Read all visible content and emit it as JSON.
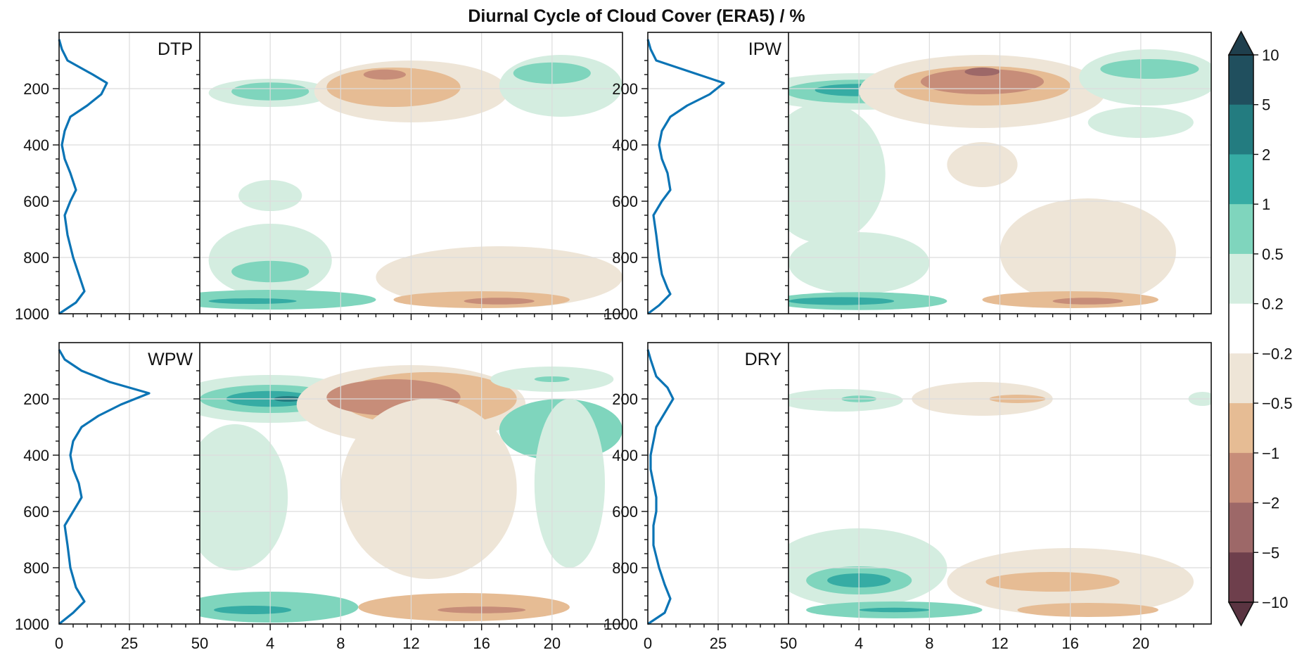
{
  "title": "Diurnal Cycle of Cloud Cover (ERA5) / %",
  "chart_data": {
    "type": "heatmap",
    "title": "Diurnal Cycle of Cloud Cover (ERA5) / %",
    "y_axis": {
      "ticks": [
        200,
        400,
        600,
        800,
        1000
      ],
      "range": [
        0,
        1000
      ],
      "inverted": true
    },
    "profile_x_axis": {
      "ticks": [
        0,
        25,
        50
      ],
      "range": [
        0,
        50
      ]
    },
    "hour_x_axis": {
      "ticks": [
        4,
        8,
        12,
        16,
        20
      ],
      "range": [
        0,
        24
      ]
    },
    "grid": true,
    "colorbar": {
      "placement": "right",
      "labels": [
        "10",
        "5",
        "2",
        "1",
        "0.5",
        "0.2",
        "−0.2",
        "−0.5",
        "−1",
        "−2",
        "−5",
        "−10"
      ],
      "colors": [
        "#204f5e",
        "#237c80",
        "#36aca4",
        "#7fd5bd",
        "#d4ede0",
        "#ffffff",
        "#eee5d7",
        "#e6bc94",
        "#c78d79",
        "#9d6868",
        "#6e3f4c"
      ],
      "extend_top_color": "#1f3f4d",
      "extend_bottom_color": "#5a3441"
    },
    "panels": [
      {
        "label": "DTP",
        "profile": [
          [
            0,
            25
          ],
          [
            1,
            60
          ],
          [
            3,
            100
          ],
          [
            12,
            150
          ],
          [
            17,
            180
          ],
          [
            15,
            220
          ],
          [
            10,
            260
          ],
          [
            4,
            300
          ],
          [
            2,
            350
          ],
          [
            1,
            400
          ],
          [
            2,
            450
          ],
          [
            4,
            500
          ],
          [
            6,
            560
          ],
          [
            4,
            600
          ],
          [
            2,
            650
          ],
          [
            3,
            720
          ],
          [
            5,
            800
          ],
          [
            7,
            860
          ],
          [
            9,
            920
          ],
          [
            6,
            960
          ],
          [
            0,
            1000
          ]
        ],
        "blobs": [
          {
            "h": 4,
            "p": 215,
            "rx": 3.5,
            "ry": 50,
            "c": 1
          },
          {
            "h": 4,
            "p": 210,
            "rx": 2.2,
            "ry": 32,
            "c": 2
          },
          {
            "h": 12,
            "p": 210,
            "rx": 5.5,
            "ry": 110,
            "c": -1
          },
          {
            "h": 11,
            "p": 195,
            "rx": 3.8,
            "ry": 70,
            "c": -2
          },
          {
            "h": 10.5,
            "p": 150,
            "rx": 1.2,
            "ry": 18,
            "c": -3
          },
          {
            "h": 20.5,
            "p": 190,
            "rx": 3.5,
            "ry": 110,
            "c": 1
          },
          {
            "h": 20,
            "p": 145,
            "rx": 2.2,
            "ry": 38,
            "c": 2
          },
          {
            "h": 4,
            "p": 580,
            "rx": 1.8,
            "ry": 55,
            "c": 1
          },
          {
            "h": 4,
            "p": 810,
            "rx": 3.5,
            "ry": 130,
            "c": 1
          },
          {
            "h": 4,
            "p": 850,
            "rx": 2.2,
            "ry": 38,
            "c": 2
          },
          {
            "h": 4,
            "p": 950,
            "rx": 6,
            "ry": 35,
            "c": 2
          },
          {
            "h": 3,
            "p": 955,
            "rx": 2.5,
            "ry": 10,
            "c": 3
          },
          {
            "h": 17,
            "p": 870,
            "rx": 7,
            "ry": 110,
            "c": -1
          },
          {
            "h": 16,
            "p": 950,
            "rx": 5,
            "ry": 30,
            "c": -2
          },
          {
            "h": 17,
            "p": 955,
            "rx": 2,
            "ry": 12,
            "c": -3
          }
        ]
      },
      {
        "label": "IPW",
        "profile": [
          [
            0,
            25
          ],
          [
            1,
            60
          ],
          [
            3,
            100
          ],
          [
            18,
            150
          ],
          [
            27,
            180
          ],
          [
            22,
            220
          ],
          [
            14,
            260
          ],
          [
            8,
            300
          ],
          [
            5,
            350
          ],
          [
            4,
            400
          ],
          [
            5,
            450
          ],
          [
            7,
            500
          ],
          [
            8,
            560
          ],
          [
            5,
            600
          ],
          [
            2,
            650
          ],
          [
            3,
            720
          ],
          [
            4,
            800
          ],
          [
            5,
            860
          ],
          [
            7,
            910
          ],
          [
            8,
            930
          ],
          [
            4,
            970
          ],
          [
            0,
            1000
          ]
        ],
        "blobs": [
          {
            "h": 4,
            "p": 210,
            "rx": 6,
            "ry": 65,
            "c": 1
          },
          {
            "h": 4,
            "p": 210,
            "rx": 4.2,
            "ry": 42,
            "c": 2
          },
          {
            "h": 4,
            "p": 205,
            "rx": 2.5,
            "ry": 22,
            "c": 3
          },
          {
            "h": 11,
            "p": 210,
            "rx": 7,
            "ry": 130,
            "c": -1
          },
          {
            "h": 11,
            "p": 190,
            "rx": 5,
            "ry": 70,
            "c": -2
          },
          {
            "h": 11,
            "p": 175,
            "rx": 3.5,
            "ry": 45,
            "c": -3
          },
          {
            "h": 11,
            "p": 140,
            "rx": 1,
            "ry": 15,
            "c": -4
          },
          {
            "h": 20.5,
            "p": 160,
            "rx": 4,
            "ry": 100,
            "c": 1
          },
          {
            "h": 20.5,
            "p": 130,
            "rx": 2.8,
            "ry": 35,
            "c": 2
          },
          {
            "h": 20,
            "p": 320,
            "rx": 3,
            "ry": 55,
            "c": 1
          },
          {
            "h": 2,
            "p": 500,
            "rx": 3.5,
            "ry": 250,
            "c": 1
          },
          {
            "h": 11,
            "p": 470,
            "rx": 2,
            "ry": 80,
            "c": -1
          },
          {
            "h": 17,
            "p": 780,
            "rx": 5,
            "ry": 190,
            "c": -1
          },
          {
            "h": 4,
            "p": 820,
            "rx": 4,
            "ry": 110,
            "c": 1
          },
          {
            "h": 4,
            "p": 955,
            "rx": 5,
            "ry": 32,
            "c": 2
          },
          {
            "h": 3,
            "p": 955,
            "rx": 3,
            "ry": 14,
            "c": 3
          },
          {
            "h": 16,
            "p": 950,
            "rx": 5,
            "ry": 30,
            "c": -2
          },
          {
            "h": 17,
            "p": 955,
            "rx": 2,
            "ry": 12,
            "c": -3
          }
        ]
      },
      {
        "label": "WPW",
        "profile": [
          [
            0,
            25
          ],
          [
            2,
            60
          ],
          [
            8,
            100
          ],
          [
            18,
            140
          ],
          [
            25,
            160
          ],
          [
            32,
            180
          ],
          [
            22,
            220
          ],
          [
            14,
            260
          ],
          [
            8,
            300
          ],
          [
            5,
            350
          ],
          [
            4,
            400
          ],
          [
            5,
            450
          ],
          [
            7,
            500
          ],
          [
            8,
            550
          ],
          [
            5,
            600
          ],
          [
            2,
            650
          ],
          [
            3,
            720
          ],
          [
            4,
            800
          ],
          [
            6,
            870
          ],
          [
            9,
            920
          ],
          [
            5,
            960
          ],
          [
            0,
            1000
          ]
        ],
        "blobs": [
          {
            "h": 4,
            "p": 200,
            "rx": 5.5,
            "ry": 85,
            "c": 1
          },
          {
            "h": 4,
            "p": 200,
            "rx": 4,
            "ry": 50,
            "c": 2
          },
          {
            "h": 4,
            "p": 200,
            "rx": 2.5,
            "ry": 28,
            "c": 3
          },
          {
            "h": 5,
            "p": 200,
            "rx": 0.8,
            "ry": 10,
            "c": 4
          },
          {
            "h": 12,
            "p": 220,
            "rx": 6.5,
            "ry": 140,
            "c": -1
          },
          {
            "h": 13,
            "p": 200,
            "rx": 5,
            "ry": 95,
            "c": -2
          },
          {
            "h": 11,
            "p": 195,
            "rx": 3.8,
            "ry": 65,
            "c": -3
          },
          {
            "h": 20,
            "p": 130,
            "rx": 3.5,
            "ry": 45,
            "c": 1
          },
          {
            "h": 20,
            "p": 130,
            "rx": 1,
            "ry": 10,
            "c": 2
          },
          {
            "h": 20.5,
            "p": 310,
            "rx": 3.5,
            "ry": 110,
            "c": 2
          },
          {
            "h": 21,
            "p": 500,
            "rx": 2,
            "ry": 300,
            "c": 1
          },
          {
            "h": 2,
            "p": 550,
            "rx": 3,
            "ry": 260,
            "c": 1
          },
          {
            "h": 13,
            "p": 520,
            "rx": 5,
            "ry": 320,
            "c": -1
          },
          {
            "h": 4,
            "p": 940,
            "rx": 5,
            "ry": 55,
            "c": 2
          },
          {
            "h": 3,
            "p": 950,
            "rx": 2.2,
            "ry": 15,
            "c": 3
          },
          {
            "h": 15,
            "p": 940,
            "rx": 6,
            "ry": 50,
            "c": -2
          },
          {
            "h": 16,
            "p": 950,
            "rx": 2.5,
            "ry": 12,
            "c": -3
          }
        ]
      },
      {
        "label": "DRY",
        "profile": [
          [
            0,
            25
          ],
          [
            1,
            60
          ],
          [
            3,
            120
          ],
          [
            7,
            160
          ],
          [
            9,
            200
          ],
          [
            6,
            250
          ],
          [
            3,
            300
          ],
          [
            2,
            350
          ],
          [
            1,
            400
          ],
          [
            1,
            450
          ],
          [
            2,
            500
          ],
          [
            3,
            550
          ],
          [
            3,
            600
          ],
          [
            2,
            650
          ],
          [
            2,
            720
          ],
          [
            4,
            800
          ],
          [
            6,
            860
          ],
          [
            8,
            910
          ],
          [
            6,
            960
          ],
          [
            0,
            1000
          ]
        ],
        "blobs": [
          {
            "h": 3,
            "p": 205,
            "rx": 3.5,
            "ry": 40,
            "c": 1
          },
          {
            "h": 4,
            "p": 200,
            "rx": 1,
            "ry": 12,
            "c": 2
          },
          {
            "h": 11,
            "p": 200,
            "rx": 4,
            "ry": 60,
            "c": -1
          },
          {
            "h": 13,
            "p": 200,
            "rx": 1.6,
            "ry": 15,
            "c": -2
          },
          {
            "h": 23.5,
            "p": 200,
            "rx": 0.8,
            "ry": 25,
            "c": 1
          },
          {
            "h": 4,
            "p": 800,
            "rx": 5,
            "ry": 140,
            "c": 1
          },
          {
            "h": 4,
            "p": 845,
            "rx": 3,
            "ry": 50,
            "c": 2
          },
          {
            "h": 4,
            "p": 845,
            "rx": 1.8,
            "ry": 25,
            "c": 3
          },
          {
            "h": 16,
            "p": 850,
            "rx": 7,
            "ry": 120,
            "c": -1
          },
          {
            "h": 15,
            "p": 850,
            "rx": 3.8,
            "ry": 35,
            "c": -2
          },
          {
            "h": 6,
            "p": 950,
            "rx": 5,
            "ry": 30,
            "c": 2
          },
          {
            "h": 6,
            "p": 950,
            "rx": 2,
            "ry": 8,
            "c": 3
          },
          {
            "h": 17,
            "p": 950,
            "rx": 4,
            "ry": 25,
            "c": -2
          }
        ]
      }
    ]
  }
}
